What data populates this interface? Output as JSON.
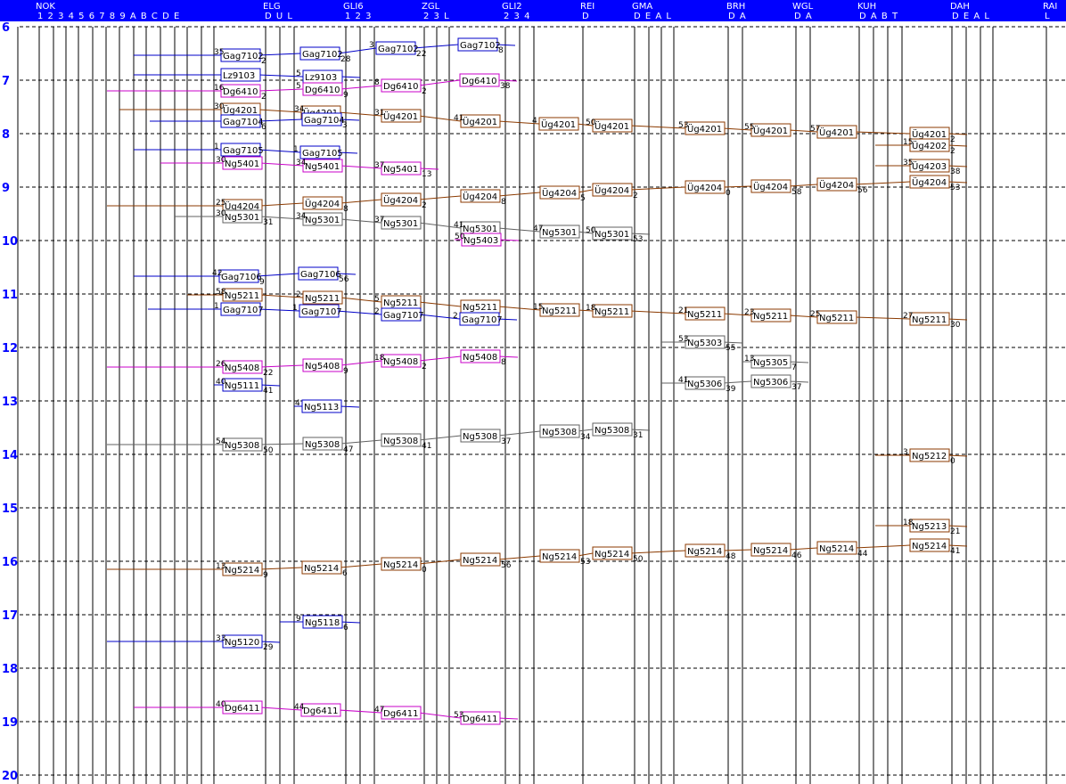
{
  "header": {
    "stations": [
      {
        "code": "NOK",
        "tracks": "1 2 3 4 5 6 7 8 9 A B C D E"
      },
      {
        "code": "ELG",
        "tracks": "D U L"
      },
      {
        "code": "GLI6",
        "tracks": "1 2 3"
      },
      {
        "code": "ZGL",
        "tracks": "2 3 L"
      },
      {
        "code": "GLI2",
        "tracks": "2 3 4"
      },
      {
        "code": "REI",
        "tracks": "D"
      },
      {
        "code": "GMA",
        "tracks": "D E A L"
      },
      {
        "code": "BRH",
        "tracks": "D A"
      },
      {
        "code": "WGL",
        "tracks": "D A"
      },
      {
        "code": "KUH",
        "tracks": "D A B T"
      },
      {
        "code": "DAH",
        "tracks": "D E A L"
      },
      {
        "code": "RAI",
        "tracks": "L"
      }
    ]
  },
  "hours": [
    "6",
    "7",
    "8",
    "9",
    "10",
    "11",
    "12",
    "13",
    "14",
    "15",
    "16",
    "17",
    "18",
    "19",
    "20"
  ],
  "colors": {
    "Gag": "#0000c8",
    "Lz": "#0000c8",
    "Dg": "#c800c8",
    "Ug": "#8b3a00",
    "Ng": "#606060",
    "Ng52": "#8b3a00",
    "Ng51": "#0000c8",
    "Ng53": "#606060",
    "header": "#0000ff",
    "hour": "#0000ff"
  },
  "trains": [
    {
      "name": "Gag7102",
      "color": "Gag",
      "stops": [
        {
          "label": "Gag7102",
          "arr": "35",
          "dep": "2"
        },
        {
          "label": "Gag7102",
          "arr": "",
          "dep": "28"
        },
        {
          "label": "Gag7102",
          "arr": "3",
          "dep": "22"
        },
        {
          "label": "Gag7102",
          "arr": "",
          "dep": "8"
        }
      ]
    },
    {
      "name": "Lz9103",
      "color": "Lz",
      "stops": [
        {
          "label": "Lz9103",
          "arr": "",
          "dep": ""
        },
        {
          "label": "Lz9103",
          "arr": "5",
          "dep": ""
        }
      ]
    },
    {
      "name": "Dg6410",
      "color": "Dg",
      "stops": [
        {
          "label": "Dg6410",
          "arr": "16",
          "dep": "2"
        },
        {
          "label": "Dg6410",
          "arr": "5",
          "dep": "9"
        },
        {
          "label": "Dg6410",
          "arr": "8",
          "dep": "2"
        },
        {
          "label": "Dg6410",
          "arr": "",
          "dep": "38"
        }
      ]
    },
    {
      "name": "Üg4201",
      "color": "Ug",
      "stops": [
        {
          "label": "Üg4201",
          "arr": "30",
          "dep": ""
        },
        {
          "label": "Üg4201",
          "arr": "34",
          "dep": ""
        },
        {
          "label": "Üg4201",
          "arr": "31",
          "dep": ""
        },
        {
          "label": "Üg4201",
          "arr": "41",
          "dep": ""
        },
        {
          "label": "Üg4201",
          "arr": "4",
          "dep": ""
        },
        {
          "label": "Üg4201",
          "arr": "50",
          "dep": ""
        },
        {
          "label": "Üg4201",
          "arr": "53",
          "dep": ""
        },
        {
          "label": "Üg4201",
          "arr": "55",
          "dep": ""
        },
        {
          "label": "Üg4201",
          "arr": "57",
          "dep": ""
        },
        {
          "label": "Üg4201",
          "arr": "",
          "dep": "2"
        }
      ]
    },
    {
      "name": "Gag7104",
      "color": "Gag",
      "stops": [
        {
          "label": "Gag7104",
          "arr": "",
          "dep": "6"
        },
        {
          "label": "Gag7104",
          "arr": "",
          "dep": "3"
        }
      ]
    },
    {
      "name": "Gag7105",
      "color": "Gag",
      "stops": [
        {
          "label": "Gag7105",
          "arr": "1",
          "dep": ""
        },
        {
          "label": "Gag7105",
          "arr": "1",
          "dep": ""
        }
      ]
    },
    {
      "name": "Ng5401",
      "color": "Dg",
      "stops": [
        {
          "label": "Ng5401",
          "arr": "30",
          "dep": ""
        },
        {
          "label": "Ng5401",
          "arr": "34",
          "dep": ""
        },
        {
          "label": "Ng5401",
          "arr": "37",
          "dep": "13"
        }
      ]
    },
    {
      "name": "Üg4202",
      "color": "Ug",
      "stops": [
        {
          "label": "Üg4202",
          "arr": "15",
          "dep": "2"
        }
      ]
    },
    {
      "name": "Üg4203",
      "color": "Ug",
      "stops": [
        {
          "label": "Üg4203",
          "arr": "35",
          "dep": "38"
        }
      ]
    },
    {
      "name": "Üg4204",
      "color": "Ug",
      "stops": [
        {
          "label": "Üg4204",
          "arr": "25",
          "dep": ""
        },
        {
          "label": "Üg4204",
          "arr": "",
          "dep": "8"
        },
        {
          "label": "Üg4204",
          "arr": "",
          "dep": "2"
        },
        {
          "label": "Üg4204",
          "arr": "",
          "dep": "8"
        },
        {
          "label": "Üg4204",
          "arr": "",
          "dep": "5"
        },
        {
          "label": "Üg4204",
          "arr": "",
          "dep": "2"
        },
        {
          "label": "Üg4204",
          "arr": "",
          "dep": "0"
        },
        {
          "label": "Üg4204",
          "arr": "",
          "dep": "58"
        },
        {
          "label": "Üg4204",
          "arr": "",
          "dep": "56"
        },
        {
          "label": "Üg4204",
          "arr": "",
          "dep": "53"
        }
      ]
    },
    {
      "name": "Ng5301",
      "color": "Ng",
      "stops": [
        {
          "label": "Ng5301",
          "arr": "30",
          "dep": "31"
        },
        {
          "label": "Ng5301",
          "arr": "34",
          "dep": ""
        },
        {
          "label": "Ng5301",
          "arr": "37",
          "dep": ""
        },
        {
          "label": "Ng5301",
          "arr": "41",
          "dep": ""
        },
        {
          "label": "Ng5301",
          "arr": "47",
          "dep": ""
        },
        {
          "label": "Ng5301",
          "arr": "50",
          "dep": "53"
        }
      ]
    },
    {
      "name": "Ng5403",
      "color": "Dg",
      "stops": [
        {
          "label": "Ng5403",
          "arr": "50",
          "dep": ""
        }
      ]
    },
    {
      "name": "Gag7106",
      "color": "Gag",
      "stops": [
        {
          "label": "Gag7106",
          "arr": "42",
          "dep": "9"
        },
        {
          "label": "Gag7106",
          "arr": "",
          "dep": "56"
        }
      ]
    },
    {
      "name": "Ng5211",
      "color": "Ug",
      "stops": [
        {
          "label": "Ng5211",
          "arr": "58",
          "dep": ""
        },
        {
          "label": "Ng5211",
          "arr": "2",
          "dep": ""
        },
        {
          "label": "Ng5211",
          "arr": "5",
          "dep": ""
        },
        {
          "label": "Ng5211",
          "arr": "",
          "dep": ""
        },
        {
          "label": "Ng5211",
          "arr": "15",
          "dep": ""
        },
        {
          "label": "Ng5211",
          "arr": "18",
          "dep": ""
        },
        {
          "label": "Ng5211",
          "arr": "21",
          "dep": ""
        },
        {
          "label": "Ng5211",
          "arr": "23",
          "dep": ""
        },
        {
          "label": "Ng5211",
          "arr": "25",
          "dep": ""
        },
        {
          "label": "Ng5211",
          "arr": "27",
          "dep": "30"
        }
      ]
    },
    {
      "name": "Gag7107",
      "color": "Gag",
      "stops": [
        {
          "label": "Gag7107",
          "arr": "1",
          "dep": ""
        },
        {
          "label": "Gag7107",
          "arr": "1",
          "dep": ""
        },
        {
          "label": "Gag7107",
          "arr": "2",
          "dep": ""
        },
        {
          "label": "Gag7107",
          "arr": "2",
          "dep": ""
        }
      ]
    },
    {
      "name": "Ng5303",
      "color": "Ng",
      "stops": [
        {
          "label": "Ng5303",
          "arr": "53",
          "dep": "55"
        }
      ]
    },
    {
      "name": "Ng5408",
      "color": "Dg",
      "stops": [
        {
          "label": "Ng5408",
          "arr": "26",
          "dep": "22"
        },
        {
          "label": "Ng5408",
          "arr": "",
          "dep": "9"
        },
        {
          "label": "Ng5408",
          "arr": "18",
          "dep": "2"
        },
        {
          "label": "Ng5408",
          "arr": "",
          "dep": "8"
        }
      ]
    },
    {
      "name": "Ng5305",
      "color": "Ng",
      "stops": [
        {
          "label": "Ng5305",
          "arr": "13",
          "dep": "7"
        }
      ]
    },
    {
      "name": "Ng5111",
      "color": "Gag",
      "stops": [
        {
          "label": "Ng5111",
          "arr": "40",
          "dep": "41"
        }
      ]
    },
    {
      "name": "Ng5306",
      "color": "Ng",
      "stops": [
        {
          "label": "Ng5306",
          "arr": "41",
          "dep": "39"
        },
        {
          "label": "Ng5306",
          "arr": "",
          "dep": "37"
        }
      ]
    },
    {
      "name": "Ng5113",
      "color": "Gag",
      "stops": [
        {
          "label": "Ng5113",
          "arr": "4",
          "dep": ""
        }
      ]
    },
    {
      "name": "Ng5308",
      "color": "Ng",
      "stops": [
        {
          "label": "Ng5308",
          "arr": "54",
          "dep": "50"
        },
        {
          "label": "Ng5308",
          "arr": "",
          "dep": "47"
        },
        {
          "label": "Ng5308",
          "arr": "",
          "dep": "41"
        },
        {
          "label": "Ng5308",
          "arr": "",
          "dep": "37"
        },
        {
          "label": "Ng5308",
          "arr": "",
          "dep": "34"
        },
        {
          "label": "Ng5308",
          "arr": "",
          "dep": "31"
        }
      ]
    },
    {
      "name": "Ng5212",
      "color": "Ug",
      "stops": [
        {
          "label": "Ng5212",
          "arr": "3",
          "dep": "0"
        }
      ]
    },
    {
      "name": "Ng5213",
      "color": "Ug",
      "stops": [
        {
          "label": "Ng5213",
          "arr": "18",
          "dep": "21"
        }
      ]
    },
    {
      "name": "Ng5214",
      "color": "Ug",
      "stops": [
        {
          "label": "Ng5214",
          "arr": "13",
          "dep": "9"
        },
        {
          "label": "Ng5214",
          "arr": "",
          "dep": "6"
        },
        {
          "label": "Ng5214",
          "arr": "",
          "dep": "0"
        },
        {
          "label": "Ng5214",
          "arr": "",
          "dep": "56"
        },
        {
          "label": "Ng5214",
          "arr": "",
          "dep": "53"
        },
        {
          "label": "Ng5214",
          "arr": "",
          "dep": "50"
        },
        {
          "label": "Ng5214",
          "arr": "",
          "dep": "48"
        },
        {
          "label": "Ng5214",
          "arr": "",
          "dep": "46"
        },
        {
          "label": "Ng5214",
          "arr": "",
          "dep": "44"
        },
        {
          "label": "Ng5214",
          "arr": "",
          "dep": "41"
        }
      ]
    },
    {
      "name": "Ng5118",
      "color": "Gag",
      "stops": [
        {
          "label": "Ng5118",
          "arr": "9",
          "dep": "6"
        }
      ]
    },
    {
      "name": "Ng5120",
      "color": "Gag",
      "stops": [
        {
          "label": "Ng5120",
          "arr": "33",
          "dep": "29"
        }
      ]
    },
    {
      "name": "Dg6411",
      "color": "Dg",
      "stops": [
        {
          "label": "Dg6411",
          "arr": "40",
          "dep": ""
        },
        {
          "label": "Dg6411",
          "arr": "44",
          "dep": ""
        },
        {
          "label": "Dg6411",
          "arr": "47",
          "dep": ""
        },
        {
          "label": "Dg6411",
          "arr": "53",
          "dep": ""
        }
      ]
    }
  ]
}
